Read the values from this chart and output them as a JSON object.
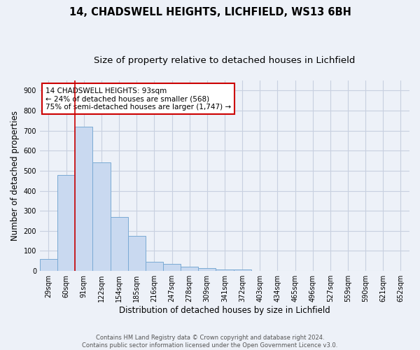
{
  "title1": "14, CHADSWELL HEIGHTS, LICHFIELD, WS13 6BH",
  "title2": "Size of property relative to detached houses in Lichfield",
  "xlabel": "Distribution of detached houses by size in Lichfield",
  "ylabel": "Number of detached properties",
  "bar_values": [
    60,
    480,
    720,
    540,
    270,
    175,
    47,
    35,
    20,
    15,
    8,
    8,
    0,
    0,
    0,
    0,
    0,
    0,
    0,
    0,
    0
  ],
  "bar_labels": [
    "29sqm",
    "60sqm",
    "91sqm",
    "122sqm",
    "154sqm",
    "185sqm",
    "216sqm",
    "247sqm",
    "278sqm",
    "309sqm",
    "341sqm",
    "372sqm",
    "403sqm",
    "434sqm",
    "465sqm",
    "496sqm",
    "527sqm",
    "559sqm",
    "590sqm",
    "621sqm",
    "652sqm"
  ],
  "bar_color": "#c9d9f0",
  "bar_edge_color": "#7aaad4",
  "bar_edge_width": 0.7,
  "vline_x": 1.5,
  "vline_color": "#cc0000",
  "ylim": [
    0,
    950
  ],
  "yticks": [
    0,
    100,
    200,
    300,
    400,
    500,
    600,
    700,
    800,
    900
  ],
  "grid_color": "#c8d0e0",
  "bg_color": "#edf1f8",
  "annotation_box_text_line1": "14 CHADSWELL HEIGHTS: 93sqm",
  "annotation_box_text_line2": "← 24% of detached houses are smaller (568)",
  "annotation_box_text_line3": "75% of semi-detached houses are larger (1,747) →",
  "annotation_box_edge_color": "#cc0000",
  "annotation_box_face_color": "#ffffff",
  "footer_line1": "Contains HM Land Registry data © Crown copyright and database right 2024.",
  "footer_line2": "Contains public sector information licensed under the Open Government Licence v3.0.",
  "title1_fontsize": 10.5,
  "title2_fontsize": 9.5,
  "xlabel_fontsize": 8.5,
  "ylabel_fontsize": 8.5,
  "tick_fontsize": 7,
  "annotation_fontsize": 7.5,
  "footer_fontsize": 6
}
